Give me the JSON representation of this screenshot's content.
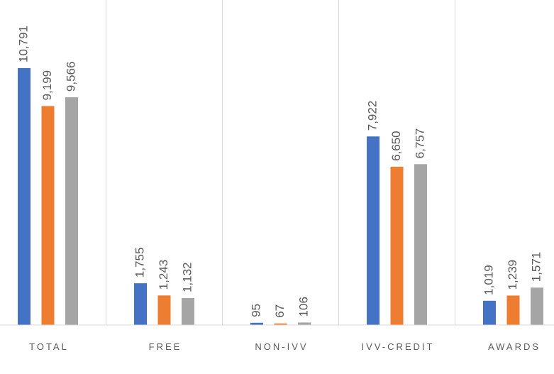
{
  "chart_data": {
    "type": "bar",
    "categories": [
      "TOTAL",
      "FREE",
      "NON-IVV",
      "IVV-CREDIT",
      "AWARDS"
    ],
    "series": [
      {
        "color": "#4472c4",
        "values": [
          10791,
          1755,
          95,
          7922,
          1019
        ],
        "value_labels": [
          "10,791",
          "1,755",
          "95",
          "7,922",
          "1,019"
        ]
      },
      {
        "color": "#ed7d31",
        "values": [
          9199,
          1243,
          67,
          6650,
          1239
        ],
        "value_labels": [
          "9,199",
          "1,243",
          "67",
          "6,650",
          "1,239"
        ]
      },
      {
        "color": "#a5a5a5",
        "values": [
          9566,
          1132,
          106,
          6757,
          1571
        ],
        "value_labels": [
          "9,566",
          "1,132",
          "106",
          "6,757",
          "1,571"
        ]
      }
    ]
  }
}
